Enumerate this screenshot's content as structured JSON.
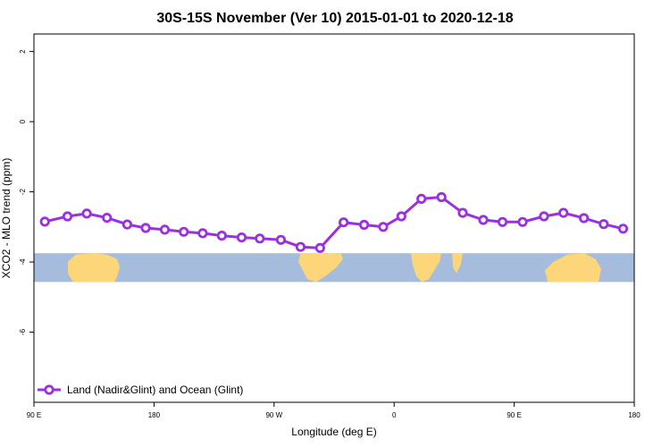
{
  "chart_data": {
    "type": "line",
    "title": "30S-15S November (Ver 10)   2015-01-01 to 2020-12-18",
    "xlabel": "Longitude (deg E)",
    "ylabel": "XCO2 - MLO trend (ppm)",
    "xlim": [
      90,
      540
    ],
    "ylim": [
      -8,
      2.5
    ],
    "x_ticks": [
      {
        "value": 90,
        "label": "90 E"
      },
      {
        "value": 180,
        "label": "180"
      },
      {
        "value": 270,
        "label": "90 W"
      },
      {
        "value": 360,
        "label": "0"
      },
      {
        "value": 450,
        "label": "90 E"
      },
      {
        "value": 540,
        "label": "180"
      }
    ],
    "y_ticks": [
      {
        "value": 2,
        "label": "2"
      },
      {
        "value": 0,
        "label": "0"
      },
      {
        "value": -2,
        "label": "-2"
      },
      {
        "value": -4,
        "label": "-4"
      },
      {
        "value": -6,
        "label": "-6"
      }
    ],
    "legend": {
      "position": "bottom-left"
    },
    "series": [
      {
        "name": "Land (Nadir&Glint) and Ocean (Glint)",
        "color": "#9b30e0",
        "x": [
          98.2,
          115.1,
          129.6,
          144.7,
          159.9,
          173.8,
          188.1,
          202.3,
          216.5,
          230.8,
          245.7,
          259.3,
          275.1,
          289.8,
          304.5,
          322.1,
          337.5,
          351.8,
          365.4,
          380.4,
          395.5,
          411.4,
          426.8,
          441.2,
          456.3,
          472.3,
          486.9,
          502.2,
          517.1,
          531.6
        ],
        "y": [
          -2.85,
          -2.7,
          -2.62,
          -2.74,
          -2.93,
          -3.03,
          -3.08,
          -3.14,
          -3.18,
          -3.25,
          -3.3,
          -3.33,
          -3.37,
          -3.57,
          -3.6,
          -2.87,
          -2.94,
          -3.0,
          -2.7,
          -2.2,
          -2.15,
          -2.6,
          -2.8,
          -2.86,
          -2.86,
          -2.7,
          -2.6,
          -2.75,
          -2.92,
          -3.05
        ]
      }
    ],
    "band": {
      "y_range": [
        -3.75,
        -4.57
      ],
      "ocean_color": "#a6bcdc",
      "land_color": "#fdd67a"
    }
  }
}
